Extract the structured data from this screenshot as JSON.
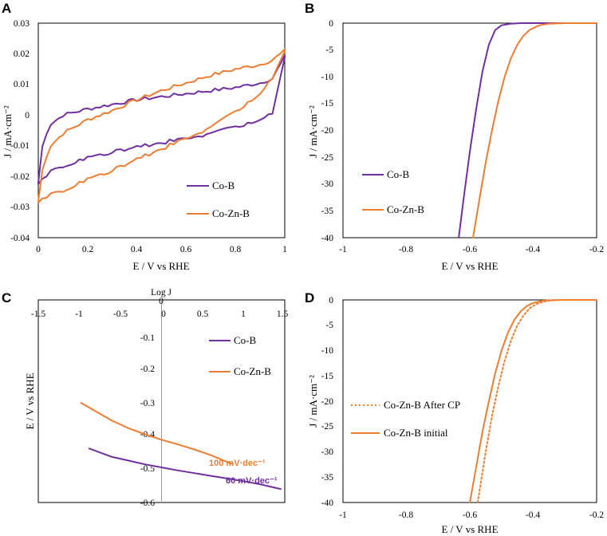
{
  "colors": {
    "co_b": "#7030a0",
    "co_zn_b": "#ed7d31"
  },
  "chart_data": [
    {
      "panel": "A",
      "type": "line",
      "xlabel": "E / V vs RHE",
      "ylabel": "J / mA·cm⁻²",
      "xlim": [
        0,
        1
      ],
      "ylim": [
        -0.04,
        0.03
      ],
      "x_ticks": [
        "0",
        "0.2",
        "0.4",
        "0.6",
        "0.8",
        "1"
      ],
      "y_ticks": [
        "0.03",
        "0.02",
        "0.01",
        "0",
        "-0.01",
        "-0.02",
        "-0.03",
        "-0.04"
      ],
      "legend": [
        "Co-B",
        "Co-Zn-B"
      ],
      "legend_position": "lower-right",
      "series": [
        {
          "name": "Co-B",
          "color_key": "co_b",
          "upper_x": [
            0,
            0.02,
            0.05,
            0.1,
            0.2,
            0.3,
            0.4,
            0.5,
            0.6,
            0.7,
            0.8,
            0.9,
            0.95,
            1.0
          ],
          "upper_y": [
            -0.022,
            -0.008,
            -0.003,
            0.0,
            0.002,
            0.0035,
            0.005,
            0.006,
            0.007,
            0.008,
            0.009,
            0.0105,
            0.012,
            0.019
          ],
          "lower_x": [
            0,
            0.02,
            0.05,
            0.1,
            0.2,
            0.3,
            0.4,
            0.5,
            0.6,
            0.7,
            0.8,
            0.9,
            0.95,
            1.0
          ],
          "lower_y": [
            -0.022,
            -0.0205,
            -0.0185,
            -0.0165,
            -0.014,
            -0.012,
            -0.0105,
            -0.009,
            -0.0075,
            -0.006,
            -0.004,
            -0.0015,
            0.0005,
            0.019
          ]
        },
        {
          "name": "Co-Zn-B",
          "color_key": "co_zn_b",
          "upper_x": [
            0,
            0.02,
            0.05,
            0.1,
            0.2,
            0.3,
            0.4,
            0.5,
            0.6,
            0.7,
            0.8,
            0.9,
            0.95,
            1.0
          ],
          "upper_y": [
            -0.028,
            -0.016,
            -0.01,
            -0.006,
            -0.0015,
            0.0015,
            0.005,
            0.008,
            0.0105,
            0.013,
            0.015,
            0.0165,
            0.018,
            0.021
          ],
          "lower_x": [
            0,
            0.02,
            0.05,
            0.1,
            0.2,
            0.3,
            0.4,
            0.5,
            0.6,
            0.7,
            0.8,
            0.9,
            0.95,
            1.0
          ],
          "lower_y": [
            -0.028,
            -0.027,
            -0.026,
            -0.0245,
            -0.021,
            -0.018,
            -0.0145,
            -0.011,
            -0.0075,
            -0.004,
            0.001,
            0.007,
            0.012,
            0.021
          ]
        }
      ]
    },
    {
      "panel": "B",
      "type": "line",
      "xlabel": "E / V vs RHE",
      "ylabel": "J / mA·cm⁻²",
      "xlim": [
        -1,
        -0.2
      ],
      "ylim": [
        -40,
        0
      ],
      "x_ticks": [
        "-1",
        "-0.8",
        "-0.6",
        "-0.4",
        "-0.2"
      ],
      "y_ticks": [
        "0",
        "-5",
        "-10",
        "-15",
        "-20",
        "-25",
        "-30",
        "-35",
        "-40"
      ],
      "legend": [
        "Co-B",
        "Co-Zn-B"
      ],
      "legend_position": "lower-left",
      "series": [
        {
          "name": "Co-B",
          "color_key": "co_b",
          "x": [
            -0.635,
            -0.62,
            -0.6,
            -0.58,
            -0.56,
            -0.54,
            -0.52,
            -0.5,
            -0.47,
            -0.44,
            -0.4,
            -0.3,
            -0.2
          ],
          "y": [
            -40,
            -33,
            -24,
            -16,
            -9,
            -4,
            -1.3,
            -0.4,
            -0.1,
            0,
            0,
            0,
            0
          ]
        },
        {
          "name": "Co-Zn-B",
          "color_key": "co_zn_b",
          "x": [
            -0.59,
            -0.57,
            -0.55,
            -0.53,
            -0.51,
            -0.49,
            -0.47,
            -0.45,
            -0.43,
            -0.41,
            -0.38,
            -0.35,
            -0.3,
            -0.2
          ],
          "y": [
            -40,
            -33,
            -26,
            -20,
            -14.5,
            -10,
            -6.5,
            -4,
            -2.3,
            -1.2,
            -0.4,
            -0.1,
            0,
            0
          ]
        }
      ]
    },
    {
      "panel": "C",
      "type": "line",
      "title": "Log J",
      "xlabel": "Log J",
      "ylabel": "E / V vs RHE",
      "xlim": [
        -1.5,
        1.5
      ],
      "ylim": [
        -0.6,
        0
      ],
      "x_ticks": [
        "-1.5",
        "-1",
        "-0.5",
        "0",
        "0.5",
        "1",
        "1.5"
      ],
      "y_ticks": [
        "0",
        "-0.1",
        "-0.2",
        "-0.3",
        "-0.4",
        "-0.5",
        "-0.6"
      ],
      "legend": [
        "Co-B",
        "Co-Zn-B"
      ],
      "legend_position": "top-right",
      "annotations": [
        {
          "text": "100 mV·dec⁻¹",
          "color_key": "co_zn_b"
        },
        {
          "text": "60 mV·dec⁻¹",
          "color_key": "co_b"
        }
      ],
      "series": [
        {
          "name": "Co-B",
          "color_key": "co_b",
          "x": [
            -0.88,
            -0.75,
            -0.6,
            -0.4,
            -0.2,
            0.0,
            0.2,
            0.4,
            0.6,
            0.8,
            1.0,
            1.2,
            1.45
          ],
          "y": [
            -0.44,
            -0.452,
            -0.465,
            -0.476,
            -0.487,
            -0.496,
            -0.505,
            -0.513,
            -0.521,
            -0.529,
            -0.537,
            -0.546,
            -0.56
          ]
        },
        {
          "name": "Co-Zn-B",
          "color_key": "co_zn_b",
          "x": [
            -0.98,
            -0.8,
            -0.6,
            -0.4,
            -0.2,
            0.0,
            0.2,
            0.4,
            0.6,
            0.85
          ],
          "y": [
            -0.305,
            -0.33,
            -0.358,
            -0.38,
            -0.398,
            -0.414,
            -0.428,
            -0.443,
            -0.46,
            -0.485
          ]
        }
      ]
    },
    {
      "panel": "D",
      "type": "line",
      "xlabel": "E / V vs RHE",
      "ylabel": "J / mA·cm⁻²",
      "xlim": [
        -1,
        -0.2
      ],
      "ylim": [
        -40,
        0
      ],
      "x_ticks": [
        "-1",
        "-0.8",
        "-0.6",
        "-0.4",
        "-0.2"
      ],
      "y_ticks": [
        "0",
        "-5",
        "-10",
        "-15",
        "-20",
        "-25",
        "-30",
        "-35",
        "-40"
      ],
      "legend": [
        "Co-Zn-B After CP",
        "Co-Zn-B initial"
      ],
      "legend_position": "lower-left",
      "series": [
        {
          "name": "Co-Zn-B After CP",
          "color_key": "co_zn_b",
          "style": "dotted",
          "x": [
            -0.575,
            -0.55,
            -0.53,
            -0.51,
            -0.49,
            -0.47,
            -0.45,
            -0.43,
            -0.41,
            -0.39,
            -0.36,
            -0.33,
            -0.3,
            -0.2
          ],
          "y": [
            -40,
            -30,
            -23,
            -17,
            -12,
            -8,
            -5,
            -3,
            -1.6,
            -0.8,
            -0.25,
            -0.05,
            0,
            0
          ]
        },
        {
          "name": "Co-Zn-B initial",
          "color_key": "co_zn_b",
          "style": "solid",
          "x": [
            -0.6,
            -0.58,
            -0.56,
            -0.54,
            -0.52,
            -0.5,
            -0.48,
            -0.46,
            -0.44,
            -0.42,
            -0.4,
            -0.37,
            -0.34,
            -0.3,
            -0.2
          ],
          "y": [
            -40,
            -33,
            -26,
            -20,
            -14.5,
            -10,
            -6.5,
            -4,
            -2.3,
            -1.2,
            -0.6,
            -0.15,
            -0.03,
            0,
            0
          ]
        }
      ]
    }
  ]
}
